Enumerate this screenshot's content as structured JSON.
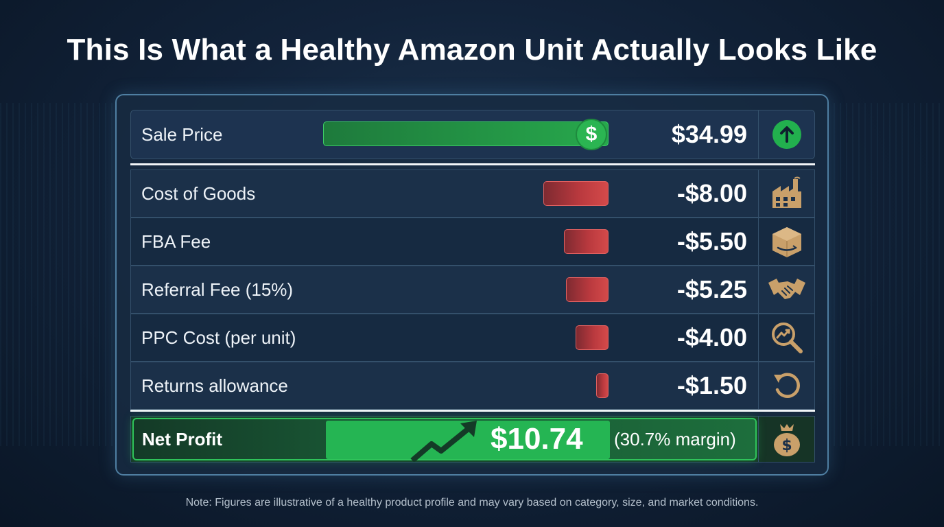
{
  "title": "This Is What a Healthy Amazon Unit Actually Looks Like",
  "note": "Note: Figures are illustrative of a healthy product profile and may vary based on category, size, and market conditions.",
  "colors": {
    "positive": "#25b553",
    "negative": "#c43f42",
    "background": "#12233a",
    "icon_tan": "#c9a06a"
  },
  "chart_data": {
    "type": "bar",
    "orientation": "horizontal",
    "title": "This Is What a Healthy Amazon Unit Actually Looks Like",
    "sale": {
      "label": "Sale Price",
      "value": 34.99,
      "value_text": "$34.99",
      "icon": "arrow-up-circle-icon",
      "badge": "$"
    },
    "costs": [
      {
        "label": "Cost of Goods",
        "value": 8.0,
        "value_text": "-$8.00",
        "icon": "factory-icon"
      },
      {
        "label": "FBA Fee",
        "value": 5.5,
        "value_text": "-$5.50",
        "icon": "package-box-icon"
      },
      {
        "label": "Referral Fee (15%)",
        "value": 5.25,
        "value_text": "-$5.25",
        "icon": "handshake-icon"
      },
      {
        "label": "PPC Cost (per unit)",
        "value": 4.0,
        "value_text": "-$4.00",
        "icon": "magnifier-trend-icon"
      },
      {
        "label": "Returns allowance",
        "value": 1.5,
        "value_text": "-$1.50",
        "icon": "return-arrow-icon"
      }
    ],
    "net": {
      "label": "Net Profit",
      "value": 10.74,
      "value_text": "$10.74",
      "margin_text": "(30.7% margin)",
      "icon": "money-bag-icon"
    }
  }
}
